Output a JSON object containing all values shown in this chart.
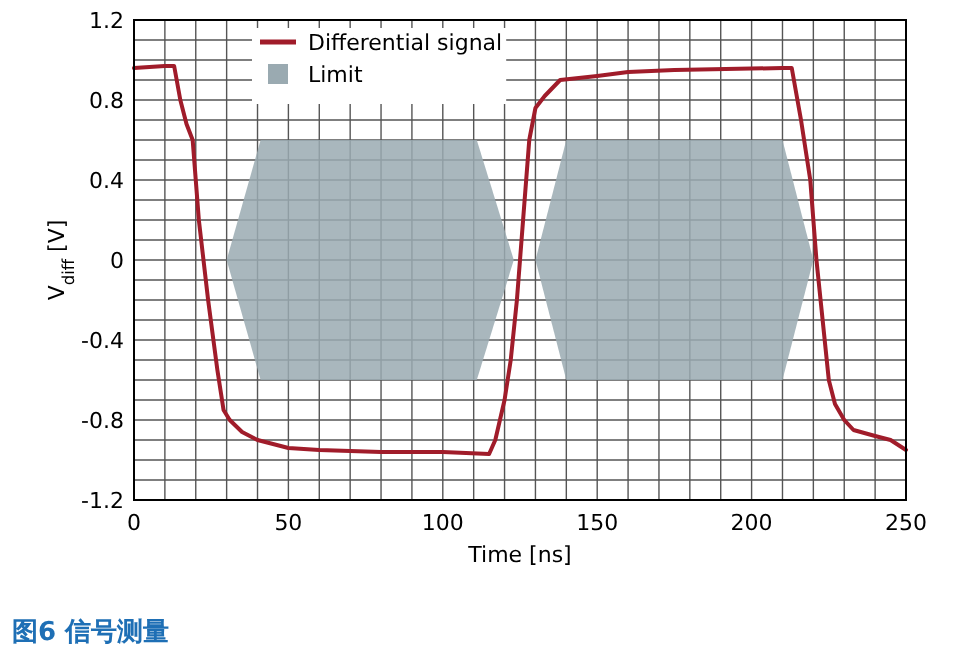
{
  "chart_data": {
    "type": "line",
    "xlabel": "Time [ns]",
    "ylabel": "V$_{diff}$ [V]",
    "xlim": [
      0,
      250
    ],
    "ylim": [
      -1.2,
      1.2
    ],
    "xticks": [
      0,
      {
        "value": 10,
        "label": null
      },
      {
        "value": 20,
        "label": null
      },
      {
        "value": 30,
        "label": null
      },
      {
        "value": 40,
        "label": null
      },
      50,
      {
        "value": 60,
        "label": null
      },
      {
        "value": 70,
        "label": null
      },
      {
        "value": 80,
        "label": null
      },
      {
        "value": 90,
        "label": null
      },
      100,
      {
        "value": 110,
        "label": null
      },
      {
        "value": 120,
        "label": null
      },
      {
        "value": 130,
        "label": null
      },
      {
        "value": 140,
        "label": null
      },
      150,
      {
        "value": 160,
        "label": null
      },
      {
        "value": 170,
        "label": null
      },
      {
        "value": 180,
        "label": null
      },
      {
        "value": 190,
        "label": null
      },
      200,
      {
        "value": 210,
        "label": null
      },
      {
        "value": 220,
        "label": null
      },
      {
        "value": 230,
        "label": null
      },
      {
        "value": 240,
        "label": null
      },
      250
    ],
    "yticks": [
      {
        "value": -1.2,
        "label": "-1.2"
      },
      {
        "value": -1.1,
        "label": null
      },
      {
        "value": -1.0,
        "label": null
      },
      {
        "value": -0.9,
        "label": null
      },
      {
        "value": -0.8,
        "label": "-0.8"
      },
      {
        "value": -0.7,
        "label": null
      },
      {
        "value": -0.6,
        "label": null
      },
      {
        "value": -0.5,
        "label": null
      },
      {
        "value": -0.4,
        "label": "-0.4"
      },
      {
        "value": -0.3,
        "label": null
      },
      {
        "value": -0.2,
        "label": null
      },
      {
        "value": -0.1,
        "label": null
      },
      0,
      {
        "value": 0.1,
        "label": null
      },
      {
        "value": 0.2,
        "label": null
      },
      {
        "value": 0.3,
        "label": null
      },
      {
        "value": 0.4,
        "label": "0.4"
      },
      {
        "value": 0.5,
        "label": null
      },
      {
        "value": 0.6,
        "label": null
      },
      {
        "value": 0.7,
        "label": null
      },
      {
        "value": 0.8,
        "label": "0.8"
      },
      {
        "value": 0.9,
        "label": null
      },
      {
        "value": 1.0,
        "label": null
      },
      {
        "value": 1.1,
        "label": null
      },
      {
        "value": 1.2,
        "label": "1.2"
      }
    ],
    "grid": true,
    "legend": "top",
    "annotations": [
      "图6 信号测量"
    ],
    "series": [
      {
        "name": "Limit",
        "type": "area",
        "color": "#9aaab1",
        "x": [
          30,
          41,
          111,
          123,
          111,
          41,
          30
        ],
        "values": [
          0,
          0.6,
          0.6,
          0,
          -0.6,
          -0.6,
          0
        ]
      },
      {
        "type": "area",
        "color": "#9aaab1",
        "x": [
          130,
          140,
          210,
          220,
          210,
          140,
          130
        ],
        "values": [
          0,
          0.6,
          0.6,
          0,
          -0.6,
          -0.6,
          0
        ]
      },
      {
        "name": "Differential signal",
        "color": "#a01c2a",
        "x": [
          0,
          10,
          13,
          15,
          17,
          19,
          21,
          24,
          27,
          29,
          31,
          35,
          40,
          45,
          50,
          60,
          80,
          100,
          115,
          117,
          120,
          122,
          124,
          126,
          128,
          130,
          133,
          138,
          150,
          160,
          175,
          210,
          213,
          216,
          219,
          221,
          223,
          225,
          227,
          230,
          233,
          240,
          245,
          250
        ],
        "values": [
          0.96,
          0.97,
          0.97,
          0.8,
          0.68,
          0.6,
          0.2,
          -0.2,
          -0.55,
          -0.75,
          -0.8,
          -0.86,
          -0.9,
          -0.92,
          -0.94,
          -0.95,
          -0.96,
          -0.96,
          -0.97,
          -0.9,
          -0.7,
          -0.5,
          -0.2,
          0.2,
          0.6,
          0.76,
          0.82,
          0.9,
          0.92,
          0.94,
          0.95,
          0.96,
          0.96,
          0.7,
          0.4,
          0.0,
          -0.3,
          -0.6,
          -0.72,
          -0.8,
          -0.85,
          -0.88,
          -0.9,
          -0.95
        ]
      }
    ]
  }
}
